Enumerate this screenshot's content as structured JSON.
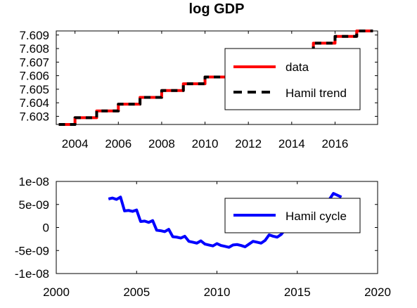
{
  "colors": {
    "data": "#ff0000",
    "trend": "#000000",
    "cycle": "#0000ff",
    "axis": "#000000"
  },
  "chart_data": [
    {
      "type": "line",
      "title": "log GDP",
      "xlabel": "",
      "ylabel": "",
      "xlim": [
        2003.2,
        2017.9
      ],
      "ylim": [
        7.6024,
        7.6093
      ],
      "xticks": [
        "2004",
        "2006",
        "2008",
        "2010",
        "2012",
        "2014",
        "2016"
      ],
      "yticks": [
        "7.603",
        "7.604",
        "7.605",
        "7.606",
        "7.607",
        "7.608",
        "7.609"
      ],
      "grid": false,
      "legend_position": "right",
      "legend": [
        "data",
        "Hamil trend"
      ],
      "series": [
        {
          "name": "data",
          "style": "solid",
          "x": [
            2003.25,
            2003.5,
            2003.75,
            2004.0,
            2004.25,
            2004.5,
            2004.75,
            2005.0,
            2005.25,
            2005.5,
            2005.75,
            2006.0,
            2006.25,
            2006.5,
            2006.75,
            2007.0,
            2007.25,
            2007.5,
            2007.75,
            2008.0,
            2008.25,
            2008.5,
            2008.75,
            2009.0,
            2009.25,
            2009.5,
            2009.75,
            2010.0,
            2010.25,
            2010.5,
            2010.75,
            2011.0,
            2011.25,
            2011.5,
            2011.75,
            2012.0,
            2012.25,
            2012.5,
            2012.75,
            2013.0,
            2013.25,
            2013.5,
            2013.75,
            2014.0,
            2014.25,
            2014.5,
            2014.75,
            2015.0,
            2015.25,
            2015.5,
            2015.75,
            2016.0,
            2016.25,
            2016.5,
            2016.75,
            2017.0,
            2017.25,
            2017.5,
            2017.75
          ],
          "y": [
            7.6024,
            7.6024,
            7.6024,
            7.6029,
            7.6029,
            7.6029,
            7.6029,
            7.6034,
            7.6034,
            7.6034,
            7.6034,
            7.6039,
            7.6039,
            7.6039,
            7.6039,
            7.6044,
            7.6044,
            7.6044,
            7.6044,
            7.6049,
            7.6049,
            7.6049,
            7.6049,
            7.6054,
            7.6054,
            7.6054,
            7.6054,
            7.6059,
            7.6059,
            7.6059,
            7.6059,
            7.6064,
            7.6064,
            7.6064,
            7.6064,
            7.6069,
            7.6069,
            7.6069,
            7.6069,
            7.6074,
            7.6074,
            7.6074,
            7.6074,
            7.6079,
            7.6079,
            7.6079,
            7.6079,
            7.6084,
            7.6084,
            7.6084,
            7.6084,
            7.6089,
            7.6089,
            7.6089,
            7.6089,
            7.6093,
            7.6093,
            7.6093,
            7.6093
          ]
        },
        {
          "name": "Hamil trend",
          "style": "dashed",
          "x": [
            2003.25,
            2003.5,
            2003.75,
            2004.0,
            2004.25,
            2004.5,
            2004.75,
            2005.0,
            2005.25,
            2005.5,
            2005.75,
            2006.0,
            2006.25,
            2006.5,
            2006.75,
            2007.0,
            2007.25,
            2007.5,
            2007.75,
            2008.0,
            2008.25,
            2008.5,
            2008.75,
            2009.0,
            2009.25,
            2009.5,
            2009.75,
            2010.0,
            2010.25,
            2010.5,
            2010.75,
            2011.0,
            2011.25,
            2011.5,
            2011.75,
            2012.0,
            2012.25,
            2012.5,
            2012.75,
            2013.0,
            2013.25,
            2013.5,
            2013.75,
            2014.0,
            2014.25,
            2014.5,
            2014.75,
            2015.0,
            2015.25,
            2015.5,
            2015.75,
            2016.0,
            2016.25,
            2016.5,
            2016.75,
            2017.0,
            2017.25,
            2017.5,
            2017.75
          ],
          "y": [
            7.6024,
            7.6024,
            7.6024,
            7.6029,
            7.6029,
            7.6029,
            7.6029,
            7.6034,
            7.6034,
            7.6034,
            7.6034,
            7.6039,
            7.6039,
            7.6039,
            7.6039,
            7.6044,
            7.6044,
            7.6044,
            7.6044,
            7.6049,
            7.6049,
            7.6049,
            7.6049,
            7.6054,
            7.6054,
            7.6054,
            7.6054,
            7.6059,
            7.6059,
            7.6059,
            7.6059,
            7.6064,
            7.6064,
            7.6064,
            7.6064,
            7.6069,
            7.6069,
            7.6069,
            7.6069,
            7.6074,
            7.6074,
            7.6074,
            7.6074,
            7.6079,
            7.6079,
            7.6079,
            7.6079,
            7.6084,
            7.6084,
            7.6084,
            7.6084,
            7.6089,
            7.6089,
            7.6089,
            7.6089,
            7.6093,
            7.6093,
            7.6093,
            7.6093
          ]
        }
      ]
    },
    {
      "type": "line",
      "title": "",
      "xlabel": "",
      "ylabel": "",
      "xlim": [
        2000,
        2020
      ],
      "ylim": [
        -1e-08,
        1e-08
      ],
      "xticks": [
        "2000",
        "2005",
        "2010",
        "2015",
        "2020"
      ],
      "yticks": [
        "1e-08",
        "5e-09",
        "0",
        "-5e-09",
        "-1e-08"
      ],
      "grid": false,
      "legend_position": "top-right",
      "legend": [
        "Hamil cycle"
      ],
      "series": [
        {
          "name": "Hamil cycle",
          "style": "solid",
          "x": [
            2003.25,
            2003.5,
            2003.75,
            2004.0,
            2004.25,
            2004.5,
            2004.75,
            2005.0,
            2005.25,
            2005.5,
            2005.75,
            2006.0,
            2006.25,
            2006.5,
            2006.75,
            2007.0,
            2007.25,
            2007.5,
            2007.75,
            2008.0,
            2008.25,
            2008.5,
            2008.75,
            2009.0,
            2009.25,
            2009.5,
            2009.75,
            2010.0,
            2010.25,
            2010.5,
            2010.75,
            2011.0,
            2011.25,
            2011.5,
            2011.75,
            2012.0,
            2012.25,
            2012.5,
            2012.75,
            2013.0,
            2013.25,
            2013.5,
            2013.75,
            2014.0,
            2014.25,
            2014.5,
            2014.75,
            2015.0,
            2015.25,
            2015.5,
            2015.75,
            2016.0,
            2016.25,
            2016.5,
            2016.75,
            2017.0,
            2017.25,
            2017.5,
            2017.75
          ],
          "y": [
            6.2e-09,
            6.4e-09,
            6.1e-09,
            6.6e-09,
            3.6e-09,
            3.7e-09,
            3.5e-09,
            3.8e-09,
            1.3e-09,
            1.4e-09,
            1.1e-09,
            1.5e-09,
            -6e-10,
            -7e-10,
            -9e-10,
            -4e-10,
            -2e-09,
            -2.1e-09,
            -2.3e-09,
            -1.9e-09,
            -3e-09,
            -3.2e-09,
            -3.4e-09,
            -2.9e-09,
            -3.6e-09,
            -3.8e-09,
            -4e-09,
            -3.5e-09,
            -3.9e-09,
            -4.1e-09,
            -4.3e-09,
            -3.8e-09,
            -3.7e-09,
            -3.9e-09,
            -4.2e-09,
            -3.6e-09,
            -3e-09,
            -3.2e-09,
            -3.4e-09,
            -2.8e-09,
            -1.6e-09,
            -1.9e-09,
            -2.1e-09,
            -1.5e-09,
            -4e-10,
            -2e-10,
            1e-10,
            6e-10,
            1.9e-09,
            2.3e-09,
            2.6e-09,
            3.2e-09,
            4.2e-09,
            4.7e-09,
            5.3e-09,
            6.1e-09,
            7.4e-09,
            7e-09,
            6.6e-09
          ]
        }
      ]
    }
  ]
}
